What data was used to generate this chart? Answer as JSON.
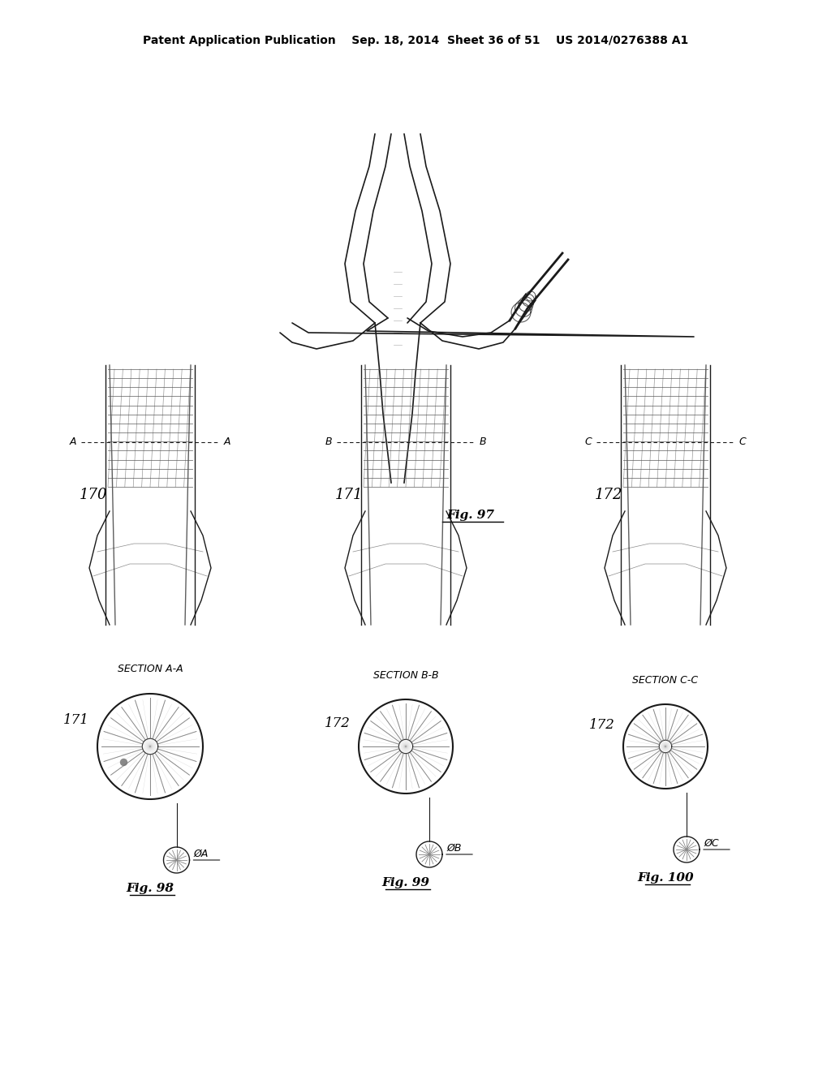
{
  "bg_color": "#ffffff",
  "header_text": "Patent Application Publication    Sep. 18, 2014  Sheet 36 of 51    US 2014/0276388 A1",
  "fig97_label": "Fig. 97",
  "fig98_label": "Fig. 98",
  "fig99_label": "Fig. 99",
  "fig100_label": "Fig. 100",
  "section_aa": "SECTION A-A",
  "section_bb": "SECTION B-B",
  "section_cc": "SECTION C-C",
  "label_170": "170",
  "label_171a": "171",
  "label_171b": "171",
  "label_172a": "172",
  "label_172b": "172",
  "label_oa": "ØA",
  "label_ob": "ØB",
  "label_oc": "ØC",
  "line_color": "#1a1a1a",
  "text_color": "#000000",
  "gray_color": "#888888",
  "light_gray": "#cccccc"
}
